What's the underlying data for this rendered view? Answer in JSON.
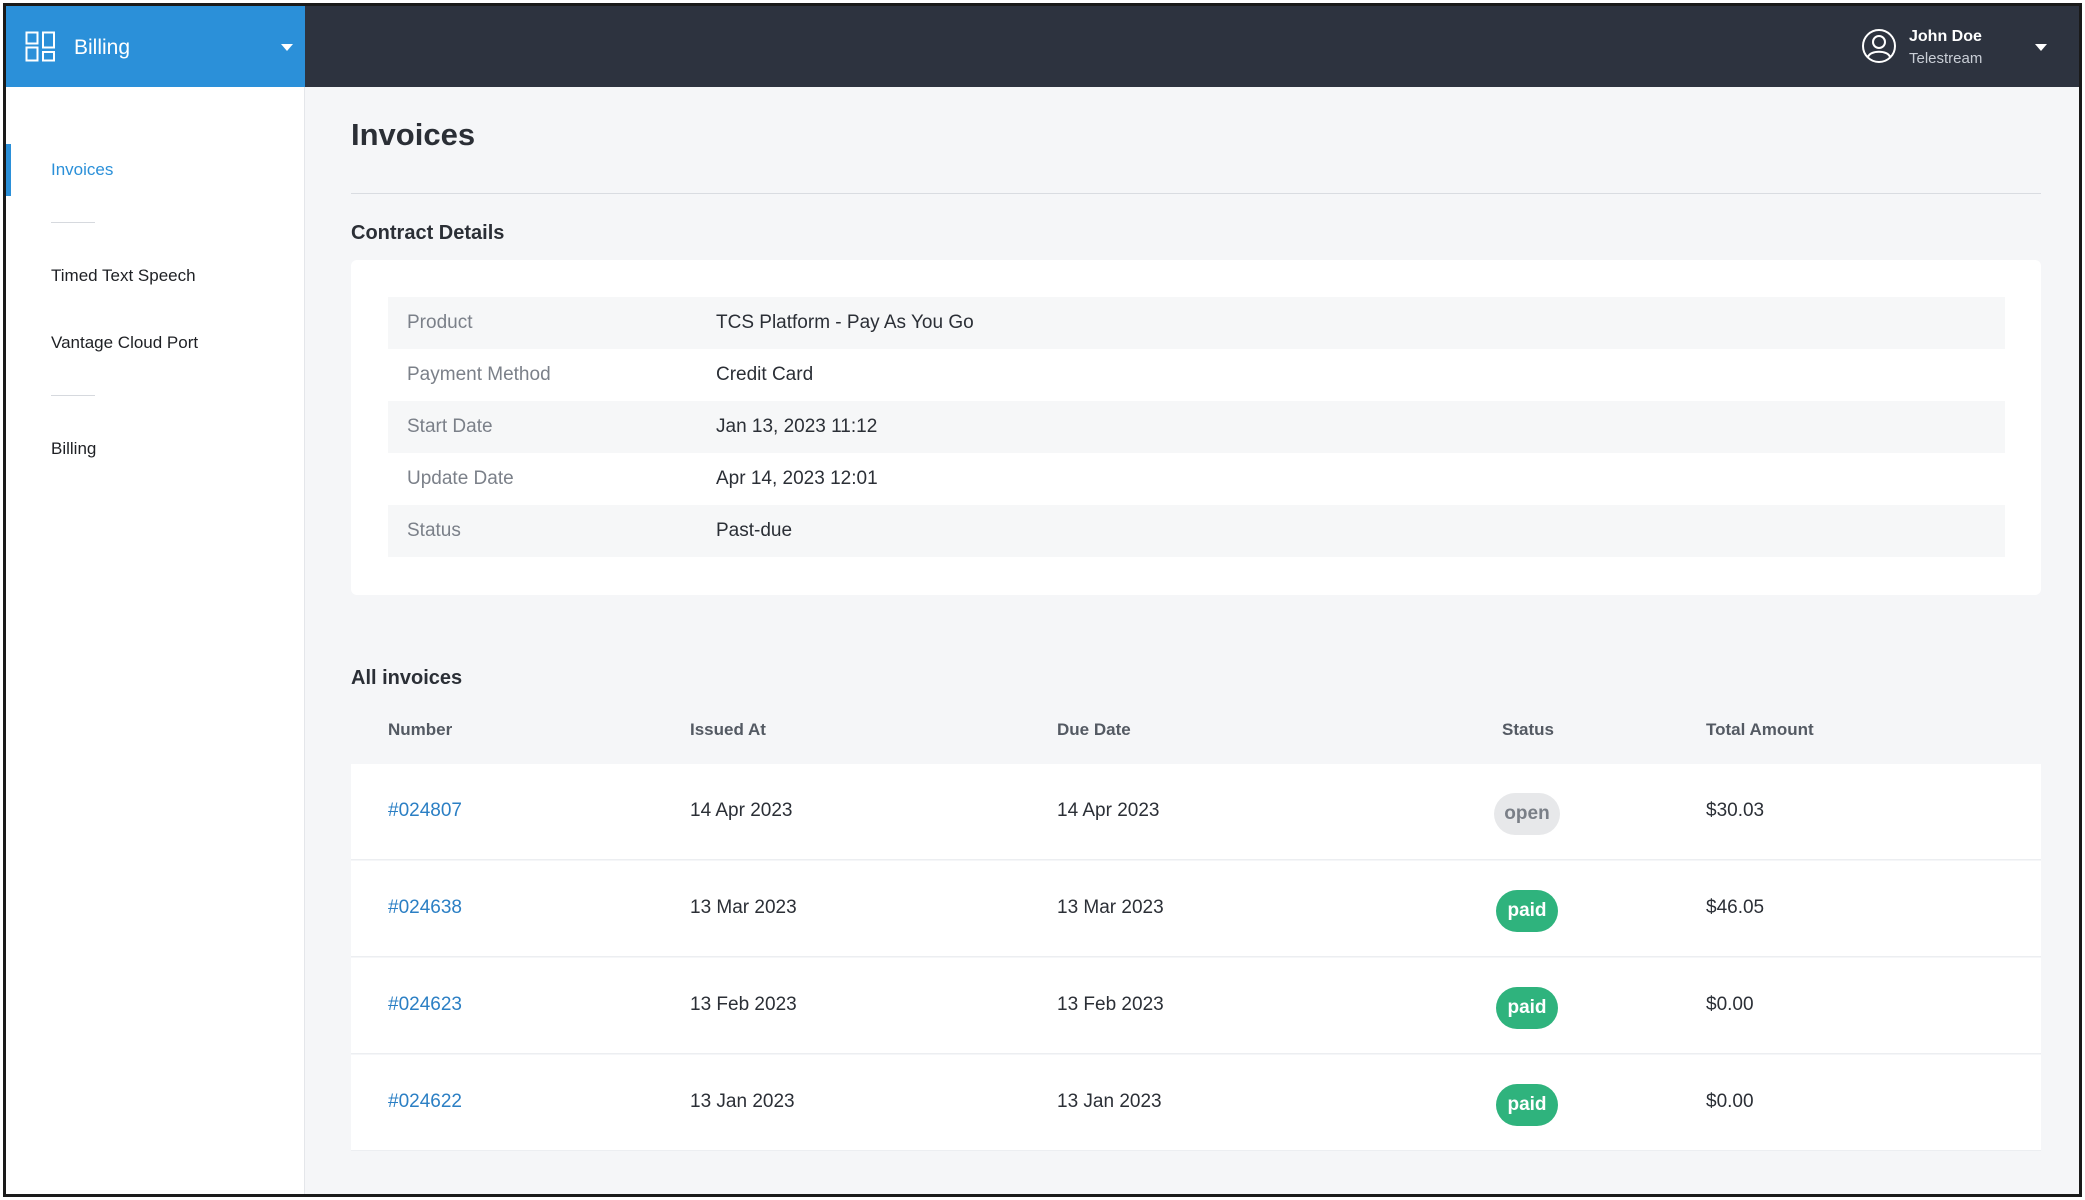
{
  "header": {
    "app_name": "Billing",
    "user": {
      "name": "John Doe",
      "organization": "Telestream"
    }
  },
  "sidebar": {
    "items": [
      {
        "label": "Invoices",
        "active": true
      },
      {
        "label": "Timed Text Speech",
        "active": false
      },
      {
        "label": "Vantage Cloud Port",
        "active": false
      },
      {
        "label": "Billing",
        "active": false
      }
    ]
  },
  "page": {
    "title": "Invoices"
  },
  "contract": {
    "section_title": "Contract Details",
    "rows": [
      {
        "label": "Product",
        "value": "TCS Platform - Pay As You Go"
      },
      {
        "label": "Payment Method",
        "value": "Credit Card"
      },
      {
        "label": "Start Date",
        "value": "Jan 13, 2023 11:12"
      },
      {
        "label": "Update Date",
        "value": "Apr 14, 2023 12:01"
      },
      {
        "label": "Status",
        "value": "Past-due"
      }
    ]
  },
  "invoices": {
    "section_title": "All invoices",
    "columns": [
      "Number",
      "Issued At",
      "Due Date",
      "Status",
      "Total Amount"
    ],
    "rows": [
      {
        "number": "#024807",
        "issued_at": "14 Apr 2023",
        "due_date": "14 Apr 2023",
        "status": "open",
        "total": "$30.03"
      },
      {
        "number": "#024638",
        "issued_at": "13 Mar 2023",
        "due_date": "13 Mar 2023",
        "status": "paid",
        "total": "$46.05"
      },
      {
        "number": "#024623",
        "issued_at": "13 Feb 2023",
        "due_date": "13 Feb 2023",
        "status": "paid",
        "total": "$0.00"
      },
      {
        "number": "#024622",
        "issued_at": "13 Jan 2023",
        "due_date": "13 Jan 2023",
        "status": "paid",
        "total": "$0.00"
      }
    ]
  },
  "colors": {
    "accent": "#2b90d9",
    "topbar": "#2d333f",
    "paid": "#2fb37d",
    "open": "#e7e8ea",
    "link": "#2b7fc4"
  },
  "icons": {
    "app_switcher": "grid-icon",
    "user": "user-circle-icon",
    "dropdown": "chevron-down-icon"
  }
}
